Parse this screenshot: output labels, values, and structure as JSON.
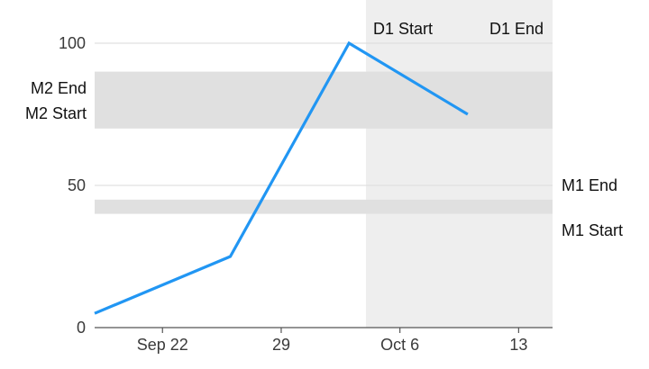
{
  "chart_data": {
    "type": "line",
    "x_type": "date",
    "xlim": [
      "2019-09-18",
      "2019-10-15"
    ],
    "ylim": [
      0,
      100
    ],
    "x_ticks": [
      {
        "date": "2019-09-22",
        "label": "Sep 22"
      },
      {
        "date": "2019-09-29",
        "label": "29"
      },
      {
        "date": "2019-10-06",
        "label": "Oct 6"
      },
      {
        "date": "2019-10-13",
        "label": "13"
      }
    ],
    "y_ticks": [
      0,
      50,
      100
    ],
    "grid": true,
    "series": [
      {
        "color": "#2196F3",
        "points": [
          {
            "x": "2019-09-18",
            "y": 5
          },
          {
            "x": "2019-09-26",
            "y": 25
          },
          {
            "x": "2019-10-03",
            "y": 100
          },
          {
            "x": "2019-10-10",
            "y": 75
          }
        ]
      }
    ],
    "range_annotations": [
      {
        "axis": "x",
        "start": "2019-10-04",
        "end": "2019-10-15",
        "start_label": "D1 Start",
        "end_label": "D1 End",
        "color": "#eeeeee"
      },
      {
        "axis": "y",
        "start": 40,
        "end": 45,
        "start_label": "M1 Start",
        "end_label": "M1 End",
        "color": "#e0e0e0"
      },
      {
        "axis": "y",
        "start": 70,
        "end": 90,
        "start_label": "M2 Start",
        "end_label": "M2 End",
        "color": "#e0e0e0"
      }
    ]
  }
}
